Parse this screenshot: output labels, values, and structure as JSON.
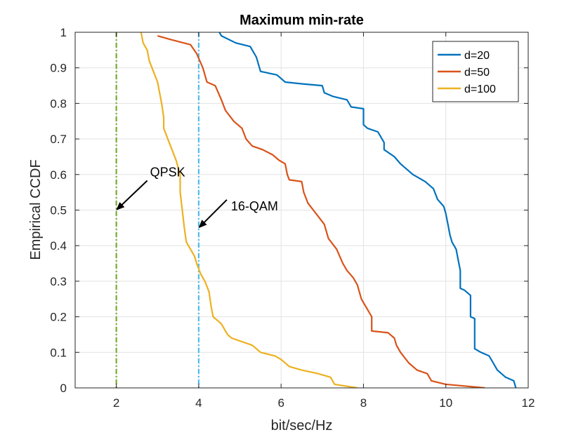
{
  "chart_data": {
    "type": "line",
    "title": "Maximum min-rate",
    "xlabel": "bit/sec/Hz",
    "ylabel": "Empirical CCDF",
    "xlim": [
      1,
      12
    ],
    "ylim": [
      0,
      1
    ],
    "xticks": [
      2,
      4,
      6,
      8,
      10,
      12
    ],
    "yticks": [
      0,
      0.1,
      0.2,
      0.3,
      0.4,
      0.5,
      0.6,
      0.7,
      0.8,
      0.9,
      1
    ],
    "grid": true,
    "legend_position": "top-right",
    "series": [
      {
        "name": "d=20",
        "color": "#0072BD",
        "points": [
          [
            4.5,
            1.0
          ],
          [
            4.55,
            0.99
          ],
          [
            4.9,
            0.97
          ],
          [
            5.25,
            0.96
          ],
          [
            5.4,
            0.93
          ],
          [
            5.5,
            0.89
          ],
          [
            5.9,
            0.88
          ],
          [
            6.1,
            0.86
          ],
          [
            6.5,
            0.855
          ],
          [
            7.0,
            0.85
          ],
          [
            7.05,
            0.83
          ],
          [
            7.25,
            0.82
          ],
          [
            7.6,
            0.81
          ],
          [
            7.7,
            0.79
          ],
          [
            8.0,
            0.785
          ],
          [
            8.0,
            0.74
          ],
          [
            8.1,
            0.73
          ],
          [
            8.35,
            0.72
          ],
          [
            8.5,
            0.69
          ],
          [
            8.5,
            0.67
          ],
          [
            8.75,
            0.65
          ],
          [
            8.9,
            0.63
          ],
          [
            9.2,
            0.6
          ],
          [
            9.5,
            0.58
          ],
          [
            9.7,
            0.56
          ],
          [
            9.8,
            0.53
          ],
          [
            9.95,
            0.51
          ],
          [
            10.0,
            0.49
          ],
          [
            10.05,
            0.46
          ],
          [
            10.1,
            0.43
          ],
          [
            10.15,
            0.41
          ],
          [
            10.25,
            0.39
          ],
          [
            10.3,
            0.36
          ],
          [
            10.35,
            0.33
          ],
          [
            10.35,
            0.28
          ],
          [
            10.45,
            0.275
          ],
          [
            10.5,
            0.27
          ],
          [
            10.6,
            0.26
          ],
          [
            10.6,
            0.2
          ],
          [
            10.7,
            0.195
          ],
          [
            10.7,
            0.11
          ],
          [
            10.85,
            0.1
          ],
          [
            11.05,
            0.09
          ],
          [
            11.15,
            0.07
          ],
          [
            11.25,
            0.05
          ],
          [
            11.45,
            0.03
          ],
          [
            11.65,
            0.02
          ],
          [
            11.7,
            0.0
          ]
        ]
      },
      {
        "name": "d=50",
        "color": "#D95319",
        "points": [
          [
            3.0,
            0.99
          ],
          [
            3.3,
            0.98
          ],
          [
            3.8,
            0.965
          ],
          [
            3.95,
            0.94
          ],
          [
            4.1,
            0.9
          ],
          [
            4.2,
            0.86
          ],
          [
            4.4,
            0.85
          ],
          [
            4.55,
            0.81
          ],
          [
            4.65,
            0.78
          ],
          [
            4.85,
            0.75
          ],
          [
            5.05,
            0.73
          ],
          [
            5.15,
            0.7
          ],
          [
            5.3,
            0.68
          ],
          [
            5.55,
            0.67
          ],
          [
            5.8,
            0.655
          ],
          [
            5.95,
            0.64
          ],
          [
            6.1,
            0.63
          ],
          [
            6.15,
            0.6
          ],
          [
            6.2,
            0.585
          ],
          [
            6.5,
            0.58
          ],
          [
            6.55,
            0.55
          ],
          [
            6.65,
            0.52
          ],
          [
            6.85,
            0.49
          ],
          [
            7.05,
            0.46
          ],
          [
            7.15,
            0.42
          ],
          [
            7.35,
            0.39
          ],
          [
            7.5,
            0.35
          ],
          [
            7.6,
            0.33
          ],
          [
            7.75,
            0.31
          ],
          [
            7.85,
            0.29
          ],
          [
            7.95,
            0.25
          ],
          [
            8.05,
            0.23
          ],
          [
            8.15,
            0.21
          ],
          [
            8.2,
            0.2
          ],
          [
            8.2,
            0.16
          ],
          [
            8.6,
            0.155
          ],
          [
            8.75,
            0.14
          ],
          [
            8.8,
            0.12
          ],
          [
            8.9,
            0.1
          ],
          [
            9.1,
            0.07
          ],
          [
            9.3,
            0.05
          ],
          [
            9.55,
            0.04
          ],
          [
            9.65,
            0.02
          ],
          [
            10.0,
            0.01
          ],
          [
            10.95,
            0.0
          ]
        ]
      },
      {
        "name": "d=100",
        "color": "#EDB120",
        "points": [
          [
            2.6,
            1.0
          ],
          [
            2.65,
            0.97
          ],
          [
            2.75,
            0.95
          ],
          [
            2.8,
            0.92
          ],
          [
            2.9,
            0.89
          ],
          [
            3.0,
            0.86
          ],
          [
            3.05,
            0.83
          ],
          [
            3.1,
            0.8
          ],
          [
            3.15,
            0.76
          ],
          [
            3.15,
            0.73
          ],
          [
            3.25,
            0.7
          ],
          [
            3.35,
            0.67
          ],
          [
            3.45,
            0.64
          ],
          [
            3.55,
            0.6
          ],
          [
            3.55,
            0.55
          ],
          [
            3.6,
            0.5
          ],
          [
            3.65,
            0.45
          ],
          [
            3.7,
            0.41
          ],
          [
            3.8,
            0.39
          ],
          [
            3.9,
            0.37
          ],
          [
            3.95,
            0.35
          ],
          [
            4.05,
            0.32
          ],
          [
            4.15,
            0.3
          ],
          [
            4.25,
            0.27
          ],
          [
            4.3,
            0.23
          ],
          [
            4.35,
            0.2
          ],
          [
            4.55,
            0.18
          ],
          [
            4.65,
            0.16
          ],
          [
            4.7,
            0.15
          ],
          [
            4.8,
            0.14
          ],
          [
            5.3,
            0.12
          ],
          [
            5.4,
            0.11
          ],
          [
            5.5,
            0.1
          ],
          [
            5.85,
            0.09
          ],
          [
            6.0,
            0.08
          ],
          [
            6.2,
            0.06
          ],
          [
            6.5,
            0.05
          ],
          [
            6.9,
            0.04
          ],
          [
            7.2,
            0.03
          ],
          [
            7.3,
            0.01
          ],
          [
            7.85,
            0.0
          ]
        ]
      }
    ],
    "reference_lines": [
      {
        "name": "qpsk-reference-line",
        "x": 2,
        "color": "#77AC30"
      },
      {
        "name": "16qam-reference-line",
        "x": 4,
        "color": "#4DBEEE"
      }
    ],
    "annotations": [
      {
        "name": "qpsk-annotation",
        "text": "QPSK",
        "tip": [
          2,
          0.5
        ]
      },
      {
        "name": "16qam-annotation",
        "text": "16-QAM",
        "tip": [
          4,
          0.45
        ]
      }
    ]
  }
}
